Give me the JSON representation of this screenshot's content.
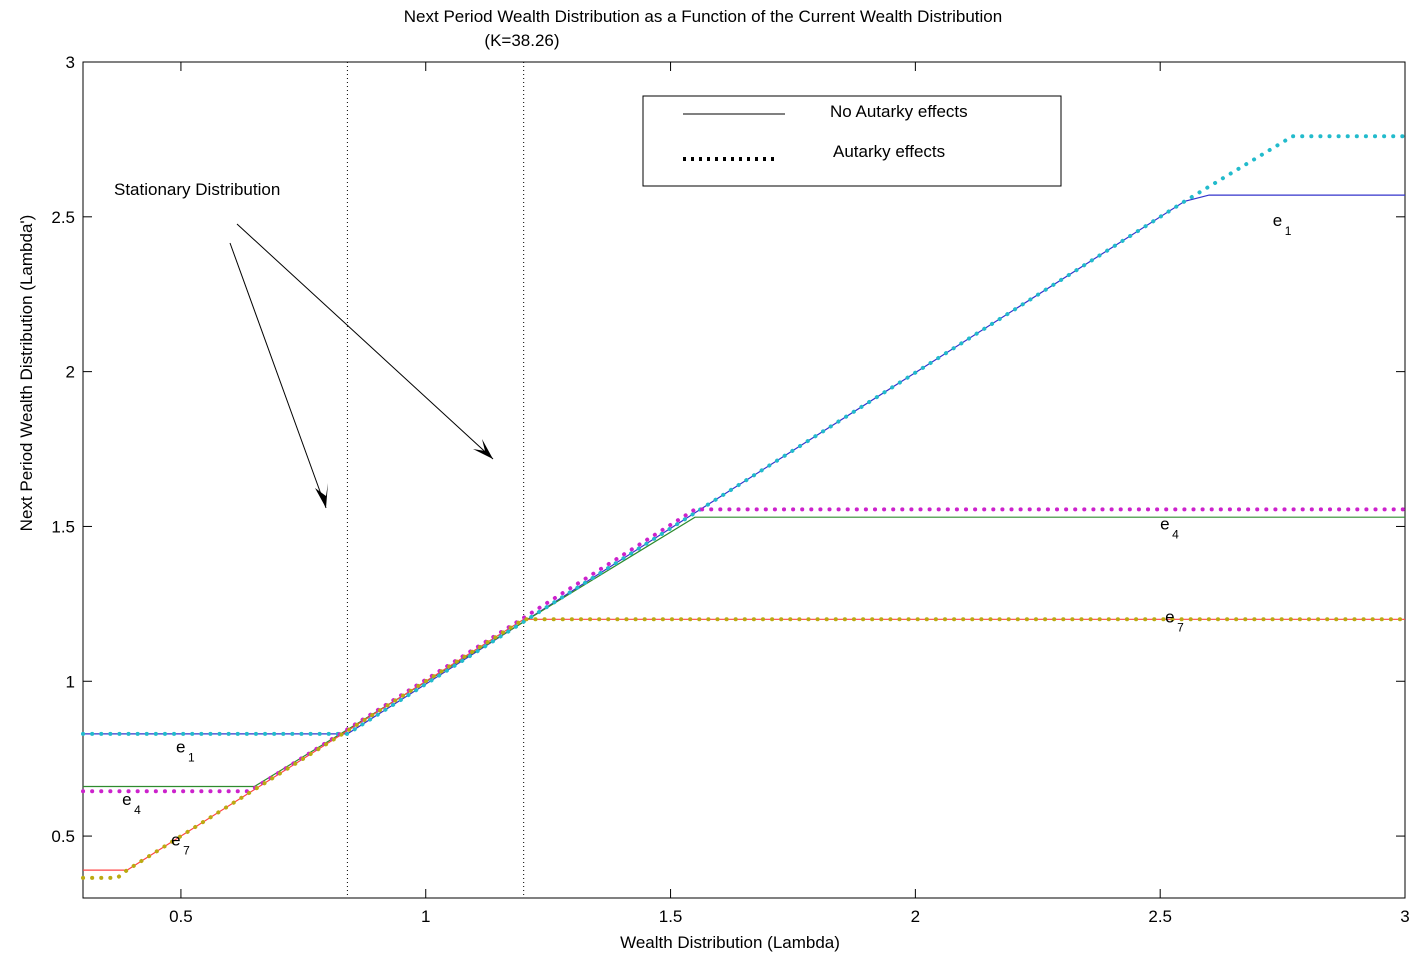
{
  "chart_data": {
    "type": "line",
    "title": "Next Period Wealth Distribution as a Function of the Current Wealth Distribution",
    "subtitle": "(K=38.26)",
    "xlabel": "Wealth Distribution (Lambda)",
    "ylabel": "Next Period Wealth Distribution (Lambda')",
    "xlim": [
      0.3,
      3.0
    ],
    "ylim": [
      0.3,
      3.0
    ],
    "xticks": [
      0.5,
      1,
      1.5,
      2,
      2.5,
      3
    ],
    "yticks": [
      0.5,
      1,
      1.5,
      2,
      2.5,
      3
    ],
    "xtick_labels": [
      "0.5",
      "1",
      "1.5",
      "2",
      "2.5",
      "3"
    ],
    "ytick_labels": [
      "0.5",
      "1",
      "1.5",
      "2",
      "2.5",
      "3"
    ],
    "grid": false,
    "legend": {
      "placement": "top-center",
      "entries": [
        {
          "label": "No Autarky effects",
          "style": "solid"
        },
        {
          "label": "Autarky effects",
          "style": "dotted"
        }
      ]
    },
    "vertical_reference_lines": [
      0.84,
      1.2
    ],
    "annotation": "Stationary Distribution",
    "series": [
      {
        "name": "e1",
        "style": "solid",
        "color": "#3333cc",
        "x": [
          0.3,
          0.84,
          2.55,
          2.6,
          3.0
        ],
        "y": [
          0.83,
          0.83,
          2.55,
          2.57,
          2.57
        ]
      },
      {
        "name": "e4",
        "style": "solid",
        "color": "#2e8b2e",
        "x": [
          0.3,
          0.65,
          1.55,
          3.0
        ],
        "y": [
          0.66,
          0.66,
          1.53,
          1.53
        ]
      },
      {
        "name": "e7",
        "style": "solid",
        "color": "#ff4444",
        "x": [
          0.3,
          0.39,
          1.2,
          3.0
        ],
        "y": [
          0.39,
          0.39,
          1.2,
          1.2
        ]
      },
      {
        "name": "e1",
        "style": "dotted",
        "color": "#22bbcc",
        "x": [
          0.3,
          0.84,
          2.55,
          2.77,
          3.0
        ],
        "y": [
          0.83,
          0.83,
          2.55,
          2.76,
          2.76
        ]
      },
      {
        "name": "e4",
        "style": "dotted",
        "color": "#cc22cc",
        "x": [
          0.3,
          0.64,
          1.55,
          3.0
        ],
        "y": [
          0.645,
          0.645,
          1.555,
          1.555
        ]
      },
      {
        "name": "e7",
        "style": "dotted",
        "color": "#bbaa11",
        "x": [
          0.3,
          0.37,
          0.39,
          1.2,
          3.0
        ],
        "y": [
          0.365,
          0.365,
          0.39,
          1.2,
          1.2
        ]
      }
    ],
    "curve_labels": [
      {
        "base": "e",
        "sub": "1",
        "x": 2.73,
        "y": 2.47
      },
      {
        "base": "e",
        "sub": "4",
        "x": 2.5,
        "y": 1.49
      },
      {
        "base": "e",
        "sub": "7",
        "x": 2.51,
        "y": 1.19
      },
      {
        "base": "e",
        "sub": "1",
        "x": 0.49,
        "y": 0.77
      },
      {
        "base": "e",
        "sub": "4",
        "x": 0.38,
        "y": 0.6
      },
      {
        "base": "e",
        "sub": "7",
        "x": 0.48,
        "y": 0.47
      }
    ]
  }
}
